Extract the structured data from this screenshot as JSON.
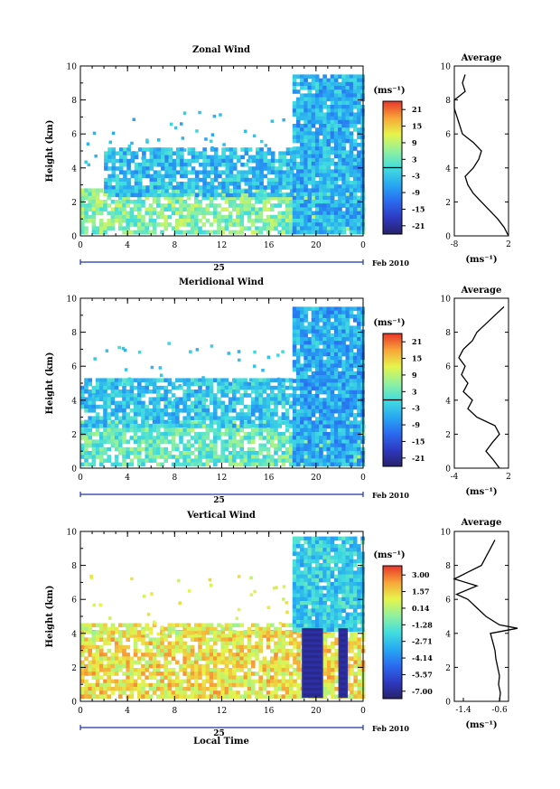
{
  "figure": {
    "x_axis_title": "Local Time",
    "date_label": "Feb 2010",
    "day_label": "25",
    "x_ticks": [
      "0",
      "4",
      "8",
      "12",
      "16",
      "20",
      "0"
    ]
  },
  "chart_data": [
    {
      "type": "heatmap",
      "title": "Zonal Wind",
      "ylabel": "Height (km)",
      "y_ticks": [
        "0",
        "2",
        "4",
        "6",
        "8",
        "10"
      ],
      "ylim": [
        0,
        10
      ],
      "xlim": [
        0,
        24
      ],
      "colorbar": {
        "unit_label": "(ms⁻¹)",
        "ticks": [
          "21",
          "15",
          "9",
          "3",
          "-3",
          "-9",
          "-15",
          "-21"
        ],
        "range": [
          -24,
          24
        ],
        "zero_line": 0
      },
      "coverage": {
        "low_layer": {
          "x": [
            0,
            24
          ],
          "height": [
            0.3,
            2.8
          ],
          "mean_value": 5
        },
        "mid_layer": {
          "x": [
            2,
            18
          ],
          "height": [
            2.5,
            5.2
          ],
          "mean_value": -4
        },
        "upper_block": {
          "x": [
            18,
            24
          ],
          "height": [
            0.3,
            9.5
          ],
          "mean_value": -5
        }
      },
      "average_profile": {
        "title": "Average",
        "xlabel": "(ms⁻¹)",
        "x_ticks": [
          "-8",
          "2"
        ],
        "xlim": [
          -8,
          2
        ],
        "height": [
          0,
          0.5,
          1,
          1.5,
          2,
          2.5,
          3,
          3.5,
          4,
          4.5,
          5,
          5.5,
          6,
          6.5,
          7,
          7.5,
          8,
          8.5,
          9,
          9.5
        ],
        "values": [
          2,
          1.2,
          0,
          -1.5,
          -3,
          -4.5,
          -5.5,
          -6,
          -4.5,
          -3.5,
          -3,
          -4.5,
          -6.5,
          -7,
          -7.5,
          -8,
          -8,
          -6,
          -6.5,
          -6
        ]
      }
    },
    {
      "type": "heatmap",
      "title": "Meridional Wind",
      "ylabel": "Height (km)",
      "y_ticks": [
        "0",
        "2",
        "4",
        "6",
        "8",
        "10"
      ],
      "ylim": [
        0,
        10
      ],
      "xlim": [
        0,
        24
      ],
      "colorbar": {
        "unit_label": "(ms⁻¹)",
        "ticks": [
          "21",
          "15",
          "9",
          "3",
          "-3",
          "-9",
          "-15",
          "-21"
        ],
        "range": [
          -24,
          24
        ],
        "zero_line": 0
      },
      "coverage": {
        "low_layer": {
          "x": [
            0,
            24
          ],
          "height": [
            0.3,
            2.8
          ],
          "mean_value": 3
        },
        "mid_layer": {
          "x": [
            0,
            18
          ],
          "height": [
            2.5,
            5.3
          ],
          "mean_value": -3
        },
        "upper_block": {
          "x": [
            18,
            24
          ],
          "height": [
            0.3,
            9.5
          ],
          "mean_value": -6
        }
      },
      "average_profile": {
        "title": "Average",
        "xlabel": "(ms⁻¹)",
        "x_ticks": [
          "-4",
          "2"
        ],
        "xlim": [
          -4,
          2
        ],
        "height": [
          0,
          0.5,
          1,
          1.5,
          2,
          2.5,
          3,
          3.5,
          4,
          4.5,
          5,
          5.5,
          6,
          6.5,
          7,
          7.5,
          8,
          8.5,
          9,
          9.5
        ],
        "values": [
          1,
          0.3,
          -0.5,
          0.2,
          1,
          0.5,
          -1.5,
          -2.5,
          -2,
          -3,
          -2.5,
          -3.2,
          -2.8,
          -3.5,
          -3,
          -2,
          -1.5,
          -0.5,
          0.5,
          1.5
        ]
      }
    },
    {
      "type": "heatmap",
      "title": "Vertical Wind",
      "ylabel": "Height (km)",
      "y_ticks": [
        "0",
        "2",
        "4",
        "6",
        "8",
        "10"
      ],
      "ylim": [
        0,
        10
      ],
      "xlim": [
        0,
        24
      ],
      "colorbar": {
        "unit_label": "(ms⁻¹)",
        "ticks": [
          "3.00",
          "1.57",
          "0.14",
          "-1.28",
          "-2.71",
          "-4.14",
          "-5.57",
          "-7.00"
        ],
        "range": [
          -7.7,
          3.7
        ],
        "zero_line": null
      },
      "coverage": {
        "low_layer": {
          "x": [
            0,
            24
          ],
          "height": [
            0.3,
            4.2
          ],
          "mean_value": 1.2
        },
        "mid_layer": {
          "x": [
            0,
            18
          ],
          "height": [
            4.0,
            4.6
          ],
          "mean_value": 0.8
        },
        "upper_block": {
          "x": [
            18,
            24
          ],
          "height": [
            4.2,
            9.7
          ],
          "mean_value": -2.5
        },
        "downdraft_bands": [
          {
            "x": [
              18.8,
              20.6
            ],
            "height": [
              0.2,
              4.3
            ],
            "value": -6.8
          },
          {
            "x": [
              21.9,
              22.7
            ],
            "height": [
              0.2,
              4.3
            ],
            "value": -6.8
          }
        ]
      },
      "average_profile": {
        "title": "Average",
        "xlabel": "(ms⁻¹)",
        "x_ticks": [
          "-1.4",
          "-0.6"
        ],
        "xlim": [
          -1.6,
          -0.4
        ],
        "height": [
          0,
          0.5,
          1,
          1.5,
          2,
          2.5,
          3,
          3.5,
          4,
          4.3,
          4.5,
          5,
          5.5,
          6,
          6.3,
          6.8,
          7.2,
          7.6,
          8,
          8.5,
          9,
          9.5
        ],
        "values": [
          -0.6,
          -0.58,
          -0.62,
          -0.6,
          -0.64,
          -0.68,
          -0.7,
          -0.75,
          -0.8,
          -0.2,
          -0.6,
          -0.9,
          -1.1,
          -1.3,
          -1.55,
          -1.1,
          -1.6,
          -1.3,
          -1.0,
          -0.9,
          -0.8,
          -0.7
        ]
      }
    }
  ]
}
